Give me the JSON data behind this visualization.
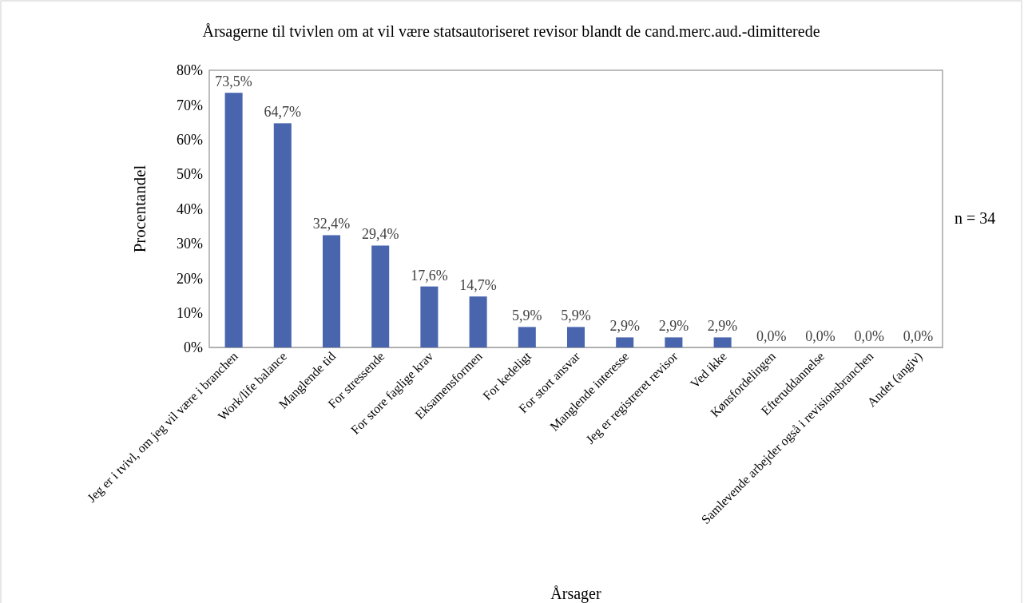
{
  "chart_data": {
    "type": "bar",
    "title": "Årsagerne til tvivlen om at vil være statsautoriseret revisor blandt de cand.merc.aud.-dimitterede",
    "xlabel": "Årsager",
    "ylabel": "Procentandel",
    "categories": [
      "Jeg er i tvivl, om jeg vil være i branchen",
      "Work/life balance",
      "Manglende tid",
      "For stressende",
      "For store faglige krav",
      "Eksamensformen",
      "For kedeligt",
      "For stort ansvar",
      "Manglende interesse",
      "Jeg er registreret revisor",
      "Ved ikke",
      "Kønsfordelingen",
      "Efteruddannelse",
      "Samlevende arbejder også i revisionsbranchen",
      "Andet (angiv)"
    ],
    "values": [
      73.5,
      64.7,
      32.4,
      29.4,
      17.6,
      14.7,
      5.9,
      5.9,
      2.9,
      2.9,
      2.9,
      0,
      0,
      0,
      0
    ],
    "value_labels": [
      "73,5%",
      "64,7%",
      "32,4%",
      "29,4%",
      "17,6%",
      "14,7%",
      "5,9%",
      "5,9%",
      "2,9%",
      "2,9%",
      "2,9%",
      "0,0%",
      "0,0%",
      "0,0%",
      "0,0%"
    ],
    "color": "#4865ad",
    "ylim": [
      0,
      80
    ],
    "yticks": [
      {
        "value": 0,
        "label": "0%"
      },
      {
        "value": 10,
        "label": "10%"
      },
      {
        "value": 20,
        "label": "20%"
      },
      {
        "value": 30,
        "label": "30%"
      },
      {
        "value": 40,
        "label": "40%"
      },
      {
        "value": 50,
        "label": "50%"
      },
      {
        "value": 60,
        "label": "60%"
      },
      {
        "value": 70,
        "label": "70%"
      },
      {
        "value": 80,
        "label": "80%"
      }
    ],
    "annotations": [
      "n = 34"
    ]
  }
}
